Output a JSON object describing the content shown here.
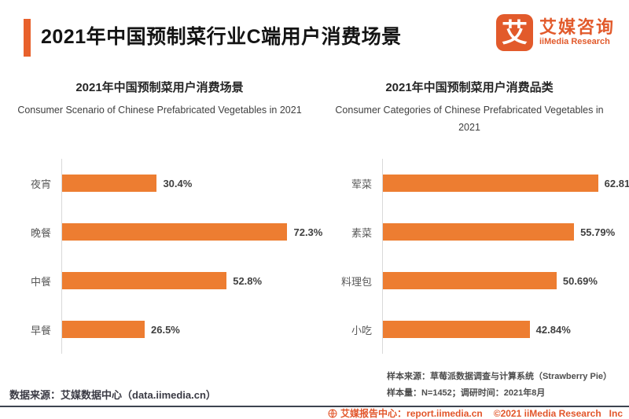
{
  "header": {
    "title": "2021年中国预制菜行业C端用户消费场景",
    "logo": {
      "mark": "艾",
      "name_cn": "艾媒咨询",
      "name_en": "iiMedia Research"
    }
  },
  "chart_data": [
    {
      "type": "bar",
      "orientation": "horizontal",
      "title": "2021年中国预制菜用户消费场景",
      "subtitle": "Consumer Scenario of Chinese Prefabricated Vegetables in 2021",
      "categories": [
        "夜宵",
        "晚餐",
        "中餐",
        "早餐"
      ],
      "values": [
        30.4,
        72.3,
        52.8,
        26.5
      ],
      "labels": [
        "30.4%",
        "72.3%",
        "52.8%",
        "26.5%"
      ],
      "xlim": [
        0,
        80
      ],
      "grid": false,
      "bar_color": "#ED7D31"
    },
    {
      "type": "bar",
      "orientation": "horizontal",
      "title": "2021年中国预制菜用户消费品类",
      "subtitle": "Consumer Categories of Chinese Prefabricated Vegetables in 2021",
      "categories": [
        "荤菜",
        "素菜",
        "料理包",
        "小吃"
      ],
      "values": [
        62.81,
        55.79,
        50.69,
        42.84
      ],
      "labels": [
        "62.81%",
        "55.79%",
        "50.69%",
        "42.84%"
      ],
      "xlim": [
        0,
        70
      ],
      "grid": false,
      "bar_color": "#ED7D31"
    }
  ],
  "footnotes": {
    "data_source": "数据来源：艾媒数据中心（data.iimedia.cn）",
    "sample_source": "样本来源：草莓派数据调查与计算系统（Strawberry Pie）",
    "sample_info": "样本量：N=1452；调研时间：2021年8月"
  },
  "footer": {
    "report_center": "艾媒报告中心：report.iimedia.cn",
    "copyright": "©2021  iiMedia Research",
    "inc": "Inc"
  },
  "colors": {
    "brand_orange": "#E2562B",
    "bar_orange": "#ED7D31",
    "accent_bar": "#E8612C",
    "divider": "#3d4450"
  }
}
